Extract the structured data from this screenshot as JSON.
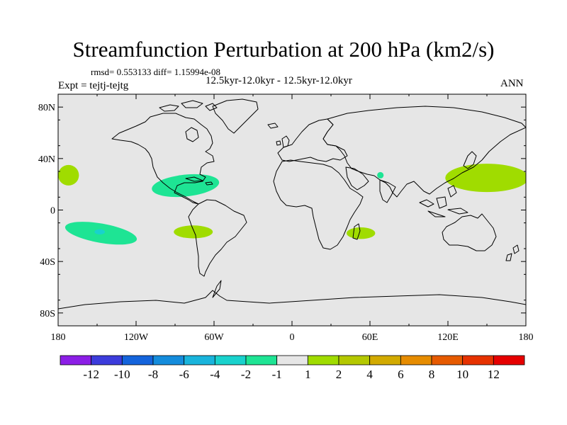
{
  "title": "Streamfunction Perturbation at 200 hPa (km2/s)",
  "stats_line": "rmsd= 0.553133 diff= 1.15994e-08",
  "period_line": "12.5kyr-12.0kyr - 12.5kyr-12.0kyr",
  "experiment_line": "Expt = tejtj-tejtg",
  "season": "ANN",
  "map": {
    "projection": "cylindrical-equidistant",
    "lon_range": [
      -180,
      180
    ],
    "lat_range": [
      -90,
      90
    ],
    "background_color": "#e6e6e6",
    "lat_ticks": [
      {
        "value": 80,
        "label": "80N"
      },
      {
        "value": 40,
        "label": "40N"
      },
      {
        "value": 0,
        "label": "0"
      },
      {
        "value": -40,
        "label": "40S"
      },
      {
        "value": -80,
        "label": "80S"
      }
    ],
    "lon_ticks": [
      {
        "value": -180,
        "label": "180"
      },
      {
        "value": -120,
        "label": "120W"
      },
      {
        "value": -60,
        "label": "60W"
      },
      {
        "value": 0,
        "label": "0"
      },
      {
        "value": 60,
        "label": "60E"
      },
      {
        "value": 120,
        "label": "120E"
      },
      {
        "value": 180,
        "label": "180"
      }
    ],
    "anomalies": [
      {
        "name": "pos-north-pacific-east",
        "region": "Northeast Pacific (west of California)",
        "center": [
          -172,
          27
        ],
        "half_width": [
          8,
          8
        ],
        "interval": "1 to 2",
        "color": "#a0dc00"
      },
      {
        "name": "neg-caribbean",
        "region": "Caribbean / Gulf of Mexico",
        "center": [
          -82,
          19
        ],
        "half_width": [
          26,
          8.5
        ],
        "interval": "-2 to -1",
        "color": "#1ee494"
      },
      {
        "name": "neg-south-pacific",
        "region": "South Pacific",
        "center": [
          -147,
          -18
        ],
        "half_width": [
          28,
          7.5
        ],
        "interval": "-2 to -1",
        "color": "#1ee494"
      },
      {
        "name": "neg-south-pacific-core",
        "region": "South Pacific core",
        "center": [
          -148,
          -17
        ],
        "half_width": [
          4,
          2
        ],
        "interval": "-4 to -2",
        "color": "#19d2cd"
      },
      {
        "name": "pos-south-america",
        "region": "Tropical South America",
        "center": [
          -76,
          -17
        ],
        "half_width": [
          15,
          5
        ],
        "interval": "1 to 2",
        "color": "#a0dc00"
      },
      {
        "name": "pos-madagascar",
        "region": "Madagascar / Mozambique Channel",
        "center": [
          53,
          -18
        ],
        "half_width": [
          11,
          4.5
        ],
        "interval": "1 to 2",
        "color": "#a0dc00"
      },
      {
        "name": "neg-arabian-sea",
        "region": "Arabian Sea",
        "center": [
          68,
          27
        ],
        "half_width": [
          2.5,
          2.5
        ],
        "interval": "-2 to -1",
        "color": "#1ee494"
      },
      {
        "name": "pos-west-pacific",
        "region": "Western North Pacific",
        "center": [
          150,
          25
        ],
        "half_width": [
          32,
          11
        ],
        "interval": "1 to 2",
        "color": "#a0dc00"
      }
    ]
  },
  "colorbar": {
    "labels": [
      "-12",
      "-10",
      "-8",
      "-6",
      "-4",
      "-2",
      "-1",
      "1",
      "2",
      "4",
      "6",
      "8",
      "10",
      "12"
    ],
    "colors": [
      "#8c1ee6",
      "#3c3cdc",
      "#1464dc",
      "#148cdc",
      "#19b4dc",
      "#19d2cd",
      "#1ee494",
      "#e6e6e6",
      "#a0dc00",
      "#b4c800",
      "#d2aa00",
      "#e68c00",
      "#e65a00",
      "#e63200",
      "#e60000"
    ]
  }
}
